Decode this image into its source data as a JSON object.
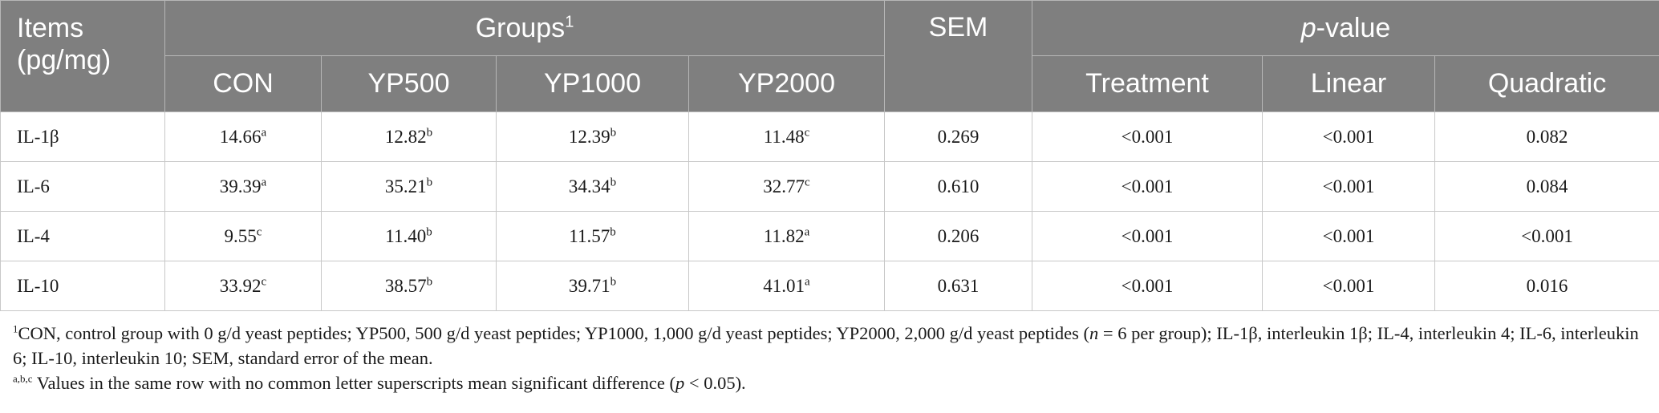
{
  "table": {
    "header": {
      "items_line1": "Items",
      "items_line2": "(pg/mg)",
      "groups": "Groups",
      "groups_mark": "1",
      "sem": "SEM",
      "pvalue_p": "p",
      "pvalue_rest": "-value",
      "columns": [
        "CON",
        "YP500",
        "YP1000",
        "YP2000"
      ],
      "p_columns": [
        "Treatment",
        "Linear",
        "Quadratic"
      ]
    },
    "rows": [
      {
        "item": "IL-1β",
        "cells": [
          {
            "v": "14.66",
            "s": "a"
          },
          {
            "v": "12.82",
            "s": "b"
          },
          {
            "v": "12.39",
            "s": "b"
          },
          {
            "v": "11.48",
            "s": "c"
          }
        ],
        "sem": "0.269",
        "p": [
          "<0.001",
          "<0.001",
          "0.082"
        ]
      },
      {
        "item": "IL-6",
        "cells": [
          {
            "v": "39.39",
            "s": "a"
          },
          {
            "v": "35.21",
            "s": "b"
          },
          {
            "v": "34.34",
            "s": "b"
          },
          {
            "v": "32.77",
            "s": "c"
          }
        ],
        "sem": "0.610",
        "p": [
          "<0.001",
          "<0.001",
          "0.084"
        ]
      },
      {
        "item": "IL-4",
        "cells": [
          {
            "v": "9.55",
            "s": "c"
          },
          {
            "v": "11.40",
            "s": "b"
          },
          {
            "v": "11.57",
            "s": "b"
          },
          {
            "v": "11.82",
            "s": "a"
          }
        ],
        "sem": "0.206",
        "p": [
          "<0.001",
          "<0.001",
          "<0.001"
        ]
      },
      {
        "item": "IL-10",
        "cells": [
          {
            "v": "33.92",
            "s": "c"
          },
          {
            "v": "38.57",
            "s": "b"
          },
          {
            "v": "39.71",
            "s": "b"
          },
          {
            "v": "41.01",
            "s": "a"
          }
        ],
        "sem": "0.631",
        "p": [
          "<0.001",
          "<0.001",
          "0.016"
        ]
      }
    ]
  },
  "footnotes": {
    "note1_mark": "1",
    "note1_a": "CON, control group with 0 g/d yeast peptides; YP500, 500 g/d yeast peptides; YP1000, 1,000 g/d yeast peptides; YP2000, 2,000 g/d yeast peptides (",
    "note1_n": "n",
    "note1_b": " = 6 per group); IL-1β, interleukin 1β; IL-4, interleukin 4; IL-6, interleukin 6; IL-10, interleukin 10; SEM, standard error of the mean.",
    "note2_mark": "a,b,c",
    "note2_a": " Values in the same row with no common letter superscripts mean significant difference (",
    "note2_p": "p",
    "note2_b": " < 0.05)."
  }
}
